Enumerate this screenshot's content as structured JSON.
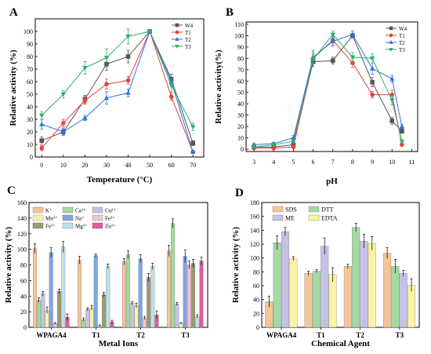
{
  "chart_data": [
    {
      "panel": "A",
      "type": "line",
      "xlabel": "Temperature (°C)",
      "ylabel": "Relative activity (%)",
      "x": [
        0,
        10,
        20,
        30,
        40,
        50,
        60,
        70
      ],
      "xlim": [
        -3,
        75
      ],
      "ylim": [
        0,
        110
      ],
      "xticks": [
        0,
        10,
        20,
        30,
        40,
        50,
        60,
        70
      ],
      "yticks": [
        0,
        10,
        20,
        30,
        40,
        50,
        60,
        70,
        80,
        90,
        100
      ],
      "legend_position": "top-right",
      "grid": false,
      "series": [
        {
          "name": "W4",
          "color": "#555555",
          "marker": "square",
          "values": [
            13,
            20,
            46,
            74,
            80,
            100,
            62,
            11
          ],
          "errors": [
            3,
            2,
            3,
            5,
            5,
            1,
            4,
            2
          ]
        },
        {
          "name": "T1",
          "color": "#e8413c",
          "marker": "circle",
          "values": [
            7,
            27,
            45,
            58,
            61,
            100,
            48,
            4
          ],
          "errors": [
            2,
            3,
            3,
            4,
            3,
            1,
            3,
            1
          ]
        },
        {
          "name": "T2",
          "color": "#2f6fe8",
          "marker": "triangle-up",
          "values": [
            26,
            20,
            31,
            47,
            51,
            100,
            60,
            4
          ],
          "errors": [
            4,
            3,
            2,
            5,
            3,
            1,
            3,
            1
          ]
        },
        {
          "name": "T3",
          "color": "#2bae66",
          "marker": "triangle-down",
          "values": [
            33,
            50,
            71,
            79,
            96,
            100,
            57,
            24
          ],
          "errors": [
            3,
            3,
            5,
            7,
            6,
            1,
            5,
            3
          ]
        }
      ]
    },
    {
      "panel": "B",
      "type": "line",
      "xlabel": "pH",
      "ylabel": "Relative activity(%)",
      "x": [
        3,
        4,
        5,
        6,
        7,
        8,
        9,
        10,
        10.5
      ],
      "xlim": [
        2.6,
        11.3
      ],
      "ylim": [
        -2,
        112
      ],
      "xticks": [
        3,
        4,
        5,
        6,
        7,
        8,
        9,
        10,
        11
      ],
      "yticks": [
        0,
        10,
        20,
        30,
        40,
        50,
        60,
        70,
        80,
        90,
        100,
        110
      ],
      "legend_position": "top-right",
      "grid": false,
      "series": [
        {
          "name": "W4",
          "color": "#555555",
          "marker": "square",
          "values": [
            2,
            2,
            4,
            77,
            78,
            100,
            59,
            25,
            16
          ],
          "errors": [
            1,
            1,
            1,
            4,
            3,
            2,
            4,
            3,
            2
          ]
        },
        {
          "name": "T1",
          "color": "#e8413c",
          "marker": "circle",
          "values": [
            1,
            1,
            2,
            80,
            96,
            76,
            48,
            48,
            4
          ],
          "errors": [
            1,
            1,
            1,
            5,
            5,
            4,
            3,
            4,
            1
          ]
        },
        {
          "name": "T2",
          "color": "#2f6fe8",
          "marker": "triangle-up",
          "values": [
            4,
            5,
            10,
            81,
            95,
            101,
            71,
            62,
            20
          ],
          "errors": [
            1,
            1,
            2,
            6,
            4,
            3,
            5,
            3,
            2
          ]
        },
        {
          "name": "T3",
          "color": "#2bae66",
          "marker": "triangle-down",
          "values": [
            2,
            4,
            7,
            79,
            101,
            81,
            80,
            43,
            7
          ],
          "errors": [
            1,
            1,
            1,
            4,
            3,
            4,
            4,
            4,
            1
          ]
        }
      ]
    },
    {
      "panel": "C",
      "type": "bar",
      "xlabel": "Metal Ions",
      "ylabel": "Relative activity (%)",
      "categories": [
        "WPAGA4",
        "T1",
        "T2",
        "T3"
      ],
      "ylim": [
        0,
        160
      ],
      "yticks": [
        0,
        20,
        40,
        60,
        80,
        100,
        120,
        140,
        160
      ],
      "legend_position": "top-left",
      "legend_columns": 3,
      "legend_order": [
        "K⁺",
        "Ca²⁺",
        "Cu²⁺",
        "Mn²⁺",
        "Na⁺",
        "Fe³⁺",
        "Fe²⁺",
        "Mg²⁺",
        "Zn²⁺"
      ],
      "series": [
        {
          "name": "K⁺",
          "color": "#f5c499",
          "values": [
            101,
            86,
            84,
            98
          ],
          "errors": [
            6,
            5,
            4,
            7
          ]
        },
        {
          "name": "Ca²⁺",
          "color": "#a3d9a2",
          "values": [
            35,
            10,
            93,
            133
          ],
          "errors": [
            3,
            2,
            5,
            6
          ]
        },
        {
          "name": "Cu²⁺",
          "color": "#c6c2e6",
          "values": [
            43,
            23,
            31,
            30
          ],
          "errors": [
            3,
            2,
            2,
            2
          ]
        },
        {
          "name": "Mn²⁺",
          "color": "#fbf3a3",
          "values": [
            22,
            25,
            28,
            5
          ],
          "errors": [
            4,
            3,
            3,
            1
          ]
        },
        {
          "name": "Na⁺",
          "color": "#7ea6e4",
          "values": [
            96,
            92,
            88,
            91
          ],
          "errors": [
            6,
            2,
            5,
            8
          ]
        },
        {
          "name": "Fe³⁺",
          "color": "#f7c2d3",
          "values": [
            5,
            2,
            12,
            80
          ],
          "errors": [
            1,
            1,
            2,
            5
          ]
        },
        {
          "name": "Fe²⁺",
          "color": "#9b9a75",
          "values": [
            46,
            42,
            64,
            82
          ],
          "errors": [
            3,
            3,
            5,
            5
          ]
        },
        {
          "name": "Mg²⁺",
          "color": "#bfe0e6",
          "values": [
            103,
            78,
            78,
            14
          ],
          "errors": [
            7,
            3,
            4,
            2
          ]
        },
        {
          "name": "Zn²⁺",
          "color": "#e05a9a",
          "values": [
            13,
            7,
            16,
            85
          ],
          "errors": [
            4,
            2,
            5,
            5
          ]
        }
      ]
    },
    {
      "panel": "D",
      "type": "bar",
      "xlabel": "Chemical Agent",
      "ylabel": "Relative activity (%)",
      "categories": [
        "WPAGA4",
        "T1",
        "T2",
        "T3"
      ],
      "ylim": [
        0,
        180
      ],
      "yticks": [
        0,
        20,
        40,
        60,
        80,
        100,
        120,
        140,
        160,
        180
      ],
      "legend_position": "top-left",
      "legend_columns": 2,
      "legend_order": [
        "SDS",
        "DTT",
        "ME",
        "EDTA"
      ],
      "series": [
        {
          "name": "SDS",
          "color": "#f5c499",
          "values": [
            37,
            78,
            88,
            107
          ],
          "errors": [
            8,
            3,
            3,
            8
          ]
        },
        {
          "name": "DTT",
          "color": "#a3d9a2",
          "values": [
            122,
            81,
            144,
            88
          ],
          "errors": [
            10,
            2,
            6,
            10
          ]
        },
        {
          "name": "ME",
          "color": "#c6c2e6",
          "values": [
            138,
            117,
            124,
            78
          ],
          "errors": [
            6,
            12,
            10,
            4
          ]
        },
        {
          "name": "EDTA",
          "color": "#fbf3a3",
          "values": [
            99,
            76,
            121,
            61
          ],
          "errors": [
            3,
            10,
            10,
            9
          ]
        }
      ]
    }
  ],
  "panel_letters": [
    "A",
    "B",
    "C",
    "D"
  ]
}
